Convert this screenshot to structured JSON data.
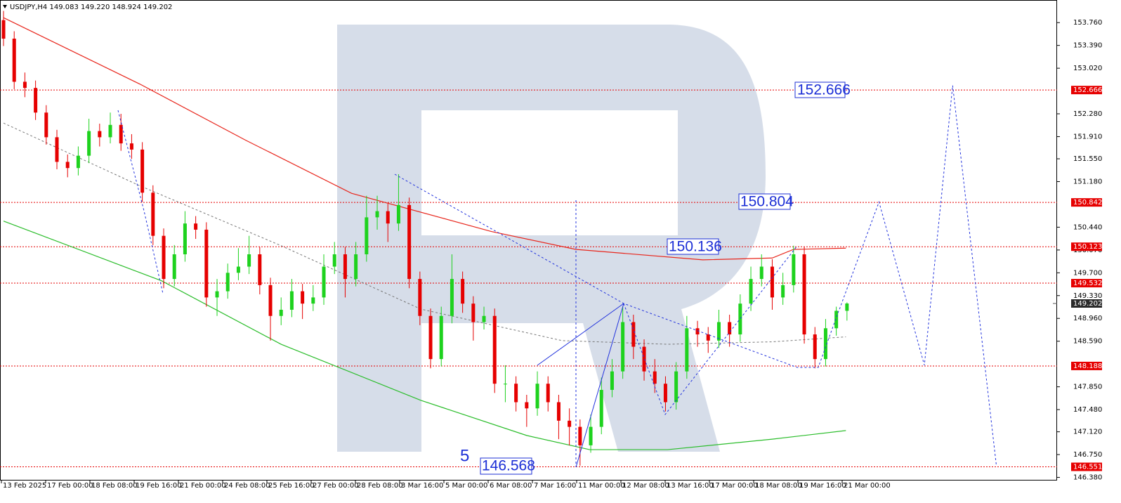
{
  "chart_data": {
    "type": "candlestick",
    "header": "USDJPY,H4  149.083 149.220 148.924 149.202",
    "xlabels": [
      "13 Feb 2025",
      "17 Feb 00:00",
      "18 Feb 08:00",
      "19 Feb 16:00",
      "21 Feb 00:00",
      "24 Feb 08:00",
      "25 Feb 16:00",
      "27 Feb 00:00",
      "28 Feb 08:00",
      "3 Mar 16:00",
      "5 Mar 00:00",
      "6 Mar 08:00",
      "7 Mar 16:00",
      "11 Mar 00:00",
      "12 Mar 08:00",
      "13 Mar 16:00",
      "17 Mar 00:00",
      "18 Mar 08:00",
      "19 Mar 16:00",
      "21 Mar 00:00"
    ],
    "xlim": [
      -0.33,
      98.68
    ],
    "ylim": [
      146.329,
      154.127
    ],
    "yticks": [
      {
        "value": 153.76,
        "label": "153.760"
      },
      {
        "value": 153.39,
        "label": "153.390"
      },
      {
        "value": 153.02,
        "label": "153.020"
      },
      {
        "value": 152.28,
        "label": "152.280"
      },
      {
        "value": 151.91,
        "label": "151.910"
      },
      {
        "value": 151.55,
        "label": "151.550"
      },
      {
        "value": 151.18,
        "label": "151.180"
      },
      {
        "value": 150.44,
        "label": "150.440"
      },
      {
        "value": 150.07,
        "label": "150.070"
      },
      {
        "value": 149.7,
        "label": "149.700"
      },
      {
        "value": 149.33,
        "label": "149.330"
      },
      {
        "value": 148.96,
        "label": "148.960"
      },
      {
        "value": 148.59,
        "label": "148.590"
      },
      {
        "value": 147.85,
        "label": "147.850"
      },
      {
        "value": 147.48,
        "label": "147.480"
      },
      {
        "value": 147.12,
        "label": "147.120"
      },
      {
        "value": 146.75,
        "label": "146.750"
      },
      {
        "value": 146.38,
        "label": "146.380"
      }
    ],
    "up_color": "#1ed21e",
    "down_color": "#e60000",
    "ohlc": [
      [
        153.8,
        153.95,
        153.38,
        153.5
      ],
      [
        153.5,
        153.62,
        152.68,
        152.8
      ],
      [
        152.8,
        152.95,
        152.55,
        152.7
      ],
      [
        152.7,
        152.82,
        152.18,
        152.3
      ],
      [
        152.3,
        152.42,
        151.78,
        151.9
      ],
      [
        151.9,
        152.02,
        151.38,
        151.5
      ],
      [
        151.5,
        151.62,
        151.25,
        151.4
      ],
      [
        151.4,
        151.75,
        151.28,
        151.6
      ],
      [
        151.6,
        152.2,
        151.48,
        152.0
      ],
      [
        152.0,
        152.12,
        151.75,
        151.9
      ],
      [
        151.9,
        152.3,
        151.8,
        152.1
      ],
      [
        152.1,
        152.28,
        151.68,
        151.8
      ],
      [
        151.8,
        151.95,
        151.55,
        151.7
      ],
      [
        151.7,
        151.82,
        150.85,
        151.0
      ],
      [
        151.0,
        151.12,
        150.15,
        150.3
      ],
      [
        150.3,
        150.42,
        149.45,
        149.6
      ],
      [
        149.6,
        150.15,
        149.48,
        150.0
      ],
      [
        150.0,
        150.7,
        149.88,
        150.5
      ],
      [
        150.5,
        150.62,
        150.25,
        150.4
      ],
      [
        150.4,
        150.52,
        149.15,
        149.3
      ],
      [
        149.3,
        149.6,
        149.0,
        149.4
      ],
      [
        149.4,
        149.85,
        149.28,
        149.7
      ],
      [
        149.7,
        150.1,
        149.58,
        149.8
      ],
      [
        149.8,
        150.3,
        149.68,
        150.0
      ],
      [
        150.0,
        150.12,
        149.35,
        149.5
      ],
      [
        149.5,
        149.62,
        148.6,
        149.0
      ],
      [
        149.0,
        149.3,
        148.85,
        149.1
      ],
      [
        149.1,
        149.6,
        148.98,
        149.4
      ],
      [
        149.4,
        149.52,
        148.95,
        149.2
      ],
      [
        149.2,
        149.5,
        149.08,
        149.3
      ],
      [
        149.3,
        150.0,
        149.18,
        149.8
      ],
      [
        149.8,
        150.2,
        149.68,
        150.0
      ],
      [
        150.0,
        150.12,
        149.3,
        149.6
      ],
      [
        149.6,
        150.2,
        149.48,
        150.0
      ],
      [
        150.0,
        150.95,
        149.88,
        150.6
      ],
      [
        150.6,
        150.95,
        150.4,
        150.7
      ],
      [
        150.7,
        150.82,
        150.2,
        150.5
      ],
      [
        150.5,
        151.3,
        150.38,
        150.8
      ],
      [
        150.8,
        150.92,
        149.45,
        149.6
      ],
      [
        149.6,
        149.72,
        148.85,
        149.0
      ],
      [
        149.0,
        149.12,
        148.15,
        148.3
      ],
      [
        148.3,
        149.15,
        148.18,
        149.0
      ],
      [
        149.0,
        150.0,
        148.88,
        149.6
      ],
      [
        149.6,
        149.72,
        149.05,
        149.2
      ],
      [
        149.2,
        149.32,
        148.6,
        148.9
      ],
      [
        148.9,
        149.15,
        148.78,
        149.0
      ],
      [
        149.0,
        149.12,
        147.75,
        147.9
      ],
      [
        147.9,
        148.2,
        147.6,
        147.9
      ],
      [
        147.9,
        148.02,
        147.45,
        147.6
      ],
      [
        147.6,
        147.72,
        147.2,
        147.5
      ],
      [
        147.5,
        148.1,
        147.38,
        147.9
      ],
      [
        147.9,
        148.02,
        147.45,
        147.6
      ],
      [
        147.6,
        147.72,
        147.0,
        147.3
      ],
      [
        147.3,
        147.5,
        146.9,
        147.2
      ],
      [
        147.2,
        147.32,
        146.57,
        146.9
      ],
      [
        146.9,
        147.4,
        146.78,
        147.2
      ],
      [
        147.2,
        148.0,
        147.08,
        147.8
      ],
      [
        147.8,
        148.3,
        147.68,
        148.1
      ],
      [
        148.1,
        149.15,
        147.98,
        148.9
      ],
      [
        148.9,
        149.02,
        148.3,
        148.5
      ],
      [
        148.5,
        148.62,
        147.95,
        148.1
      ],
      [
        148.1,
        148.3,
        147.75,
        147.9
      ],
      [
        147.9,
        148.02,
        147.45,
        147.6
      ],
      [
        147.6,
        148.25,
        147.48,
        148.1
      ],
      [
        148.1,
        149.0,
        147.98,
        148.8
      ],
      [
        148.8,
        148.92,
        148.5,
        148.7
      ],
      [
        148.7,
        148.82,
        148.4,
        148.6
      ],
      [
        148.6,
        149.1,
        148.48,
        148.9
      ],
      [
        148.9,
        149.02,
        148.5,
        148.7
      ],
      [
        148.7,
        149.35,
        148.58,
        149.2
      ],
      [
        149.2,
        149.8,
        149.08,
        149.6
      ],
      [
        149.6,
        150.0,
        149.48,
        149.8
      ],
      [
        149.8,
        149.92,
        149.1,
        149.3
      ],
      [
        149.3,
        149.7,
        149.18,
        149.5
      ],
      [
        149.5,
        150.14,
        149.38,
        150.0
      ],
      [
        150.0,
        150.12,
        148.55,
        148.7
      ],
      [
        148.7,
        148.82,
        148.15,
        148.3
      ],
      [
        148.3,
        148.95,
        148.18,
        148.8
      ],
      [
        148.8,
        149.15,
        148.68,
        149.083
      ],
      [
        149.083,
        149.22,
        148.924,
        149.202
      ]
    ],
    "lines": [
      {
        "color": "#e8261c",
        "dash": false,
        "x": [
          0,
          12.8,
          22.7,
          32.6,
          45.7,
          53.6,
          65.5,
          72.0,
          74.0,
          78.9
        ],
        "values": [
          153.84,
          152.76,
          151.85,
          150.99,
          150.37,
          150.08,
          149.91,
          149.94,
          150.08,
          150.1
        ]
      },
      {
        "color": "#2bbd2b",
        "dash": false,
        "x": [
          0,
          14.8,
          26,
          39.1,
          49,
          54.9,
          62.2,
          72,
          78.9
        ],
        "values": [
          150.54,
          149.57,
          148.54,
          147.63,
          147.06,
          146.83,
          146.83,
          147.0,
          147.14
        ]
      },
      {
        "color": "#777777",
        "dash": true,
        "x": [
          0,
          12.8,
          26,
          39.1,
          52.3,
          62.2,
          72,
          78.9
        ],
        "values": [
          152.13,
          151.11,
          150.14,
          149.11,
          148.6,
          148.54,
          148.58,
          148.66
        ]
      },
      {
        "color": "#2233dd",
        "dash": true,
        "x": [
          78.3,
          82.0,
          86.25,
          88.9,
          93.0
        ],
        "values": [
          149.11,
          150.85,
          148.2,
          152.74,
          146.56
        ]
      }
    ],
    "levels": [
      152.666,
      150.842,
      150.123,
      149.532,
      148.188,
      146.551
    ],
    "level_color": "#e60000",
    "current": 149.202,
    "annotations": [
      "152.666",
      "150.804",
      "150.136",
      "146.568",
      "5"
    ]
  }
}
